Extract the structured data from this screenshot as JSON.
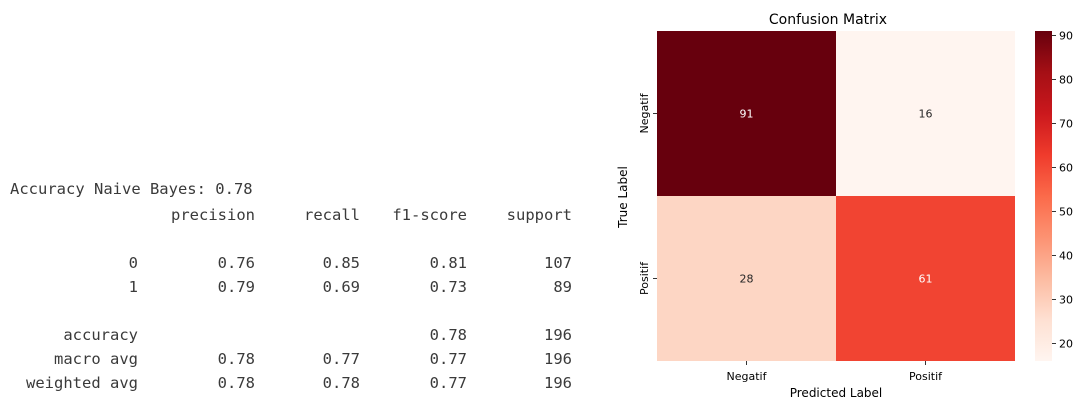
{
  "report": {
    "accuracy_line": "Accuracy Naive Bayes: 0.78",
    "headers": [
      "precision",
      "recall",
      "f1-score",
      "support"
    ],
    "rows": [
      {
        "label": "0",
        "values": [
          "0.76",
          "0.85",
          "0.81",
          "107"
        ]
      },
      {
        "label": "1",
        "values": [
          "0.79",
          "0.69",
          "0.73",
          "89"
        ]
      },
      {
        "label": "accuracy",
        "values": [
          "",
          "",
          "0.78",
          "196"
        ]
      },
      {
        "label": "macro avg",
        "values": [
          "0.78",
          "0.77",
          "0.77",
          "196"
        ]
      },
      {
        "label": "weighted avg",
        "values": [
          "0.78",
          "0.78",
          "0.77",
          "196"
        ]
      }
    ]
  },
  "chart_data": {
    "type": "heatmap",
    "title": "Confusion Matrix",
    "xlabel": "Predicted Label",
    "ylabel": "True Label",
    "x_categories": [
      "Negatif",
      "Positif"
    ],
    "y_categories": [
      "Negatif",
      "Positif"
    ],
    "values": [
      [
        91,
        16
      ],
      [
        28,
        61
      ]
    ],
    "colorbar": {
      "cmap": "Reds",
      "range": [
        16,
        91
      ],
      "ticks": [
        20,
        30,
        40,
        50,
        60,
        70,
        80,
        90
      ]
    },
    "colors": {
      "low": "#fff5f0",
      "high": "#67000d",
      "annot_dark_bg": "#ffffff",
      "annot_light_bg": "#262626"
    }
  }
}
